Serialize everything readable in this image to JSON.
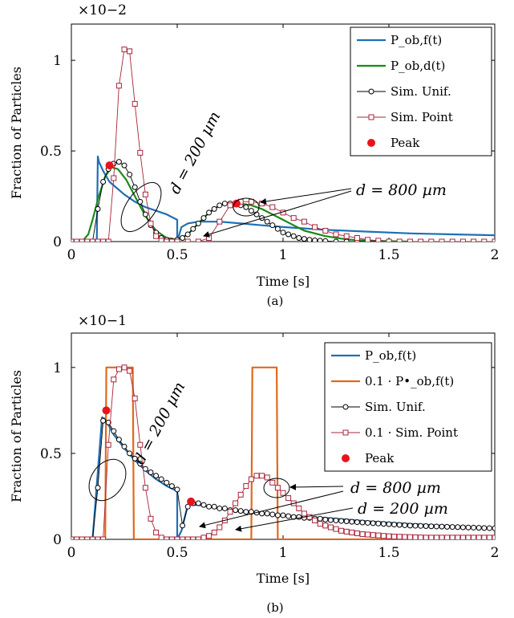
{
  "chart_data": [
    {
      "type": "line",
      "subcaption": "(a)",
      "exponent_label": "×10−2",
      "xlabel": "Time [s]",
      "ylabel": "Fraction of Particles",
      "xlim": [
        0,
        2
      ],
      "ylim": [
        0,
        1.2
      ],
      "xticks": [
        "0",
        "0.5",
        "1",
        "1.5",
        "2"
      ],
      "yticks": [
        "0",
        "0.5",
        "1"
      ],
      "legend_position": "top-right",
      "legend": [
        "P_ob,f(t)",
        "P_ob,d(t)",
        "Sim. Unif.",
        "Sim. Point",
        "Peak"
      ],
      "annotations": [
        "d = 200 µm",
        "d = 800 µm"
      ],
      "series": [
        {
          "name": "P_ob,f(t)",
          "color": "#1f6fb4",
          "style": "line",
          "x": [
            0,
            0.12,
            0.125,
            0.13,
            0.15,
            0.18,
            0.2,
            0.25,
            0.3,
            0.35,
            0.4,
            0.45,
            0.5,
            0.5,
            0.52,
            0.55,
            0.6,
            0.7,
            0.8,
            0.9,
            1.0,
            1.2,
            1.4,
            1.6,
            1.8,
            2.0
          ],
          "values": [
            0,
            0,
            0.47,
            0.44,
            0.39,
            0.33,
            0.31,
            0.26,
            0.22,
            0.19,
            0.17,
            0.15,
            0.12,
            0.0,
            0.08,
            0.1,
            0.11,
            0.11,
            0.1,
            0.09,
            0.08,
            0.065,
            0.055,
            0.045,
            0.04,
            0.035
          ]
        },
        {
          "name": "P_ob,d(t)",
          "color": "#1a8a1a",
          "style": "line",
          "x": [
            0,
            0.05,
            0.08,
            0.1,
            0.13,
            0.16,
            0.19,
            0.22,
            0.26,
            0.3,
            0.35,
            0.4,
            0.45,
            0.5,
            0.55,
            0.6,
            0.65,
            0.7,
            0.75,
            0.8,
            0.85,
            0.9,
            0.95,
            1.0,
            1.05,
            1.1,
            1.2,
            1.3,
            1.4,
            1.5,
            1.6
          ],
          "values": [
            0,
            0,
            0.04,
            0.12,
            0.25,
            0.36,
            0.41,
            0.4,
            0.34,
            0.25,
            0.14,
            0.06,
            0.02,
            0.01,
            0.04,
            0.1,
            0.16,
            0.2,
            0.21,
            0.21,
            0.2,
            0.18,
            0.15,
            0.12,
            0.09,
            0.06,
            0.03,
            0.012,
            0.005,
            0.002,
            0
          ]
        },
        {
          "name": "Sim. Unif.",
          "color": "#000000",
          "style": "line-circle",
          "x": [
            0,
            0.05,
            0.1,
            0.125,
            0.15,
            0.175,
            0.2,
            0.225,
            0.25,
            0.275,
            0.3,
            0.325,
            0.35,
            0.375,
            0.4,
            0.425,
            0.45,
            0.475,
            0.5,
            0.525,
            0.55,
            0.575,
            0.6,
            0.625,
            0.65,
            0.675,
            0.7,
            0.725,
            0.75,
            0.775,
            0.8,
            0.825,
            0.85,
            0.875,
            0.9,
            0.925,
            0.95,
            0.975,
            1.0,
            1.025,
            1.05,
            1.075,
            1.1,
            1.125,
            1.15,
            1.175,
            1.2,
            1.25,
            1.3,
            1.35,
            1.4,
            1.45,
            1.5,
            1.55,
            1.6,
            1.65,
            1.7,
            1.75,
            1.8,
            1.85,
            1.9,
            1.95,
            2.0
          ],
          "values": [
            0,
            0,
            0,
            0.18,
            0.33,
            0.4,
            0.43,
            0.44,
            0.42,
            0.37,
            0.3,
            0.22,
            0.15,
            0.09,
            0.05,
            0.02,
            0.01,
            0.005,
            0.01,
            0.02,
            0.04,
            0.07,
            0.1,
            0.13,
            0.16,
            0.18,
            0.2,
            0.21,
            0.21,
            0.21,
            0.2,
            0.19,
            0.17,
            0.15,
            0.13,
            0.11,
            0.09,
            0.07,
            0.05,
            0.04,
            0.03,
            0.02,
            0.015,
            0.01,
            0.007,
            0.005,
            0.003,
            0,
            0,
            0,
            0,
            0,
            0,
            0,
            0,
            0,
            0,
            0,
            0,
            0,
            0,
            0,
            0
          ]
        },
        {
          "name": "Sim. Point",
          "color": "#a8243a",
          "style": "line-square",
          "x": [
            0,
            0.025,
            0.05,
            0.075,
            0.1,
            0.125,
            0.15,
            0.175,
            0.2,
            0.225,
            0.25,
            0.275,
            0.3,
            0.325,
            0.35,
            0.375,
            0.4,
            0.425,
            0.45,
            0.475,
            0.5,
            0.55,
            0.6,
            0.65,
            0.7,
            0.75,
            0.8,
            0.85,
            0.9,
            0.95,
            1.0,
            1.05,
            1.1,
            1.15,
            1.2,
            1.25,
            1.3,
            1.35,
            1.4,
            1.45,
            1.5,
            1.55,
            1.6,
            1.65,
            1.7,
            1.75,
            1.8,
            1.85,
            1.9,
            1.95,
            2.0
          ],
          "values": [
            0,
            0,
            0,
            0,
            0,
            0,
            0,
            0,
            0.35,
            0.86,
            1.06,
            1.05,
            0.76,
            0.49,
            0.26,
            0.1,
            0.03,
            0.005,
            0,
            0,
            0,
            0,
            0,
            0.02,
            0.11,
            0.2,
            0.22,
            0.22,
            0.21,
            0.19,
            0.16,
            0.13,
            0.11,
            0.08,
            0.06,
            0.04,
            0.03,
            0.02,
            0.01,
            0.005,
            0,
            0,
            0,
            0,
            0,
            0,
            0,
            0,
            0,
            0,
            0
          ]
        },
        {
          "name": "Peak",
          "color": "#e8141c",
          "style": "dot",
          "x": [
            0.18,
            0.78
          ],
          "values": [
            0.42,
            0.21
          ]
        }
      ]
    },
    {
      "type": "line",
      "subcaption": "(b)",
      "exponent_label": "×10−1",
      "xlabel": "Time [s]",
      "ylabel": "Fraction of Particles",
      "xlim": [
        0,
        2
      ],
      "ylim": [
        0,
        1.2
      ],
      "xticks": [
        "0",
        "0.5",
        "1",
        "1.5",
        "2"
      ],
      "yticks": [
        "0",
        "0.5",
        "1"
      ],
      "legend_position": "top-right",
      "legend": [
        "P_ob,f(t)",
        "0.1 · P•_ob,f(t)",
        "Sim. Unif.",
        "0.1 · Sim. Point",
        "Peak"
      ],
      "annotations": [
        "d = 200 µm",
        "d = 800 µm",
        "d = 200 µm"
      ],
      "series": [
        {
          "name": "P_ob,f(t)",
          "color": "#1f6fb4",
          "style": "line",
          "x": [
            0,
            0.1,
            0.145,
            0.16,
            0.2,
            0.25,
            0.3,
            0.35,
            0.4,
            0.45,
            0.5,
            0.5,
            0.52,
            0.55,
            0.6,
            0.7,
            0.8,
            0.9,
            1.0,
            1.1,
            1.2,
            1.3,
            1.4,
            1.5,
            1.6,
            1.7,
            1.8,
            1.9,
            2.0
          ],
          "values": [
            0,
            0,
            0.71,
            0.7,
            0.61,
            0.53,
            0.46,
            0.4,
            0.35,
            0.31,
            0.28,
            0.0,
            0.05,
            0.2,
            0.2,
            0.18,
            0.16,
            0.15,
            0.14,
            0.13,
            0.125,
            0.115,
            0.105,
            0.097,
            0.09,
            0.083,
            0.077,
            0.071,
            0.065
          ]
        },
        {
          "name": "0.1 · P•_ob,f(t)",
          "color": "#e06a1b",
          "style": "line",
          "x": [
            0,
            0.16,
            0.165,
            0.29,
            0.295,
            0.85,
            0.855,
            0.97,
            0.975,
            2.0
          ],
          "values": [
            0,
            0,
            1.0,
            1.0,
            0,
            0,
            1.0,
            1.0,
            0,
            0
          ]
        },
        {
          "name": "Sim. Unif.",
          "color": "#000000",
          "style": "line-circle",
          "x": [
            0,
            0.025,
            0.05,
            0.075,
            0.1,
            0.125,
            0.15,
            0.175,
            0.2,
            0.225,
            0.25,
            0.275,
            0.3,
            0.325,
            0.35,
            0.375,
            0.4,
            0.425,
            0.45,
            0.475,
            0.5,
            0.525,
            0.55,
            0.575,
            0.6,
            0.625,
            0.65,
            0.675,
            0.7,
            0.725,
            0.75,
            0.775,
            0.8,
            0.825,
            0.85,
            0.875,
            0.9,
            0.925,
            0.95,
            0.975,
            1.0,
            1.025,
            1.05,
            1.075,
            1.1,
            1.125,
            1.15,
            1.175,
            1.2,
            1.225,
            1.25,
            1.275,
            1.3,
            1.325,
            1.35,
            1.375,
            1.4,
            1.425,
            1.45,
            1.475,
            1.5,
            1.525,
            1.55,
            1.575,
            1.6,
            1.625,
            1.65,
            1.675,
            1.7,
            1.725,
            1.75,
            1.775,
            1.8,
            1.825,
            1.85,
            1.875,
            1.9,
            1.925,
            1.95,
            1.975,
            2.0
          ],
          "values": [
            0,
            0,
            0,
            0,
            0,
            0.3,
            0.69,
            0.68,
            0.63,
            0.58,
            0.54,
            0.5,
            0.47,
            0.44,
            0.41,
            0.39,
            0.37,
            0.35,
            0.33,
            0.31,
            0.29,
            0.08,
            0.19,
            0.21,
            0.21,
            0.2,
            0.19,
            0.19,
            0.18,
            0.18,
            0.17,
            0.17,
            0.165,
            0.16,
            0.16,
            0.155,
            0.15,
            0.15,
            0.145,
            0.14,
            0.14,
            0.135,
            0.13,
            0.13,
            0.125,
            0.125,
            0.12,
            0.12,
            0.115,
            0.112,
            0.11,
            0.107,
            0.105,
            0.102,
            0.1,
            0.098,
            0.096,
            0.094,
            0.092,
            0.09,
            0.088,
            0.086,
            0.084,
            0.082,
            0.08,
            0.079,
            0.078,
            0.077,
            0.076,
            0.075,
            0.074,
            0.073,
            0.072,
            0.071,
            0.07,
            0.069,
            0.068,
            0.067,
            0.066,
            0.065,
            0.064
          ]
        },
        {
          "name": "0.1 · Sim. Point",
          "color": "#a8243a",
          "style": "line-square",
          "x": [
            0,
            0.025,
            0.05,
            0.075,
            0.1,
            0.125,
            0.15,
            0.175,
            0.2,
            0.225,
            0.25,
            0.275,
            0.3,
            0.325,
            0.35,
            0.375,
            0.4,
            0.425,
            0.45,
            0.475,
            0.5,
            0.525,
            0.55,
            0.575,
            0.6,
            0.625,
            0.65,
            0.675,
            0.7,
            0.725,
            0.75,
            0.775,
            0.8,
            0.825,
            0.85,
            0.875,
            0.9,
            0.925,
            0.95,
            0.975,
            1.0,
            1.025,
            1.05,
            1.075,
            1.1,
            1.125,
            1.15,
            1.175,
            1.2,
            1.225,
            1.25,
            1.275,
            1.3,
            1.325,
            1.35,
            1.375,
            1.4,
            1.425,
            1.45,
            1.475,
            1.5,
            1.525,
            1.55,
            1.575,
            1.6,
            1.625,
            1.65,
            1.675,
            1.7,
            1.725,
            1.75,
            1.775,
            1.8,
            1.825,
            1.85,
            1.875,
            1.9,
            1.925,
            1.95,
            1.975,
            2.0
          ],
          "values": [
            0,
            0,
            0,
            0,
            0,
            0,
            0,
            0.55,
            0.93,
            0.99,
            1.0,
            0.98,
            0.82,
            0.55,
            0.3,
            0.12,
            0.04,
            0.01,
            0,
            0,
            0,
            0,
            0,
            0,
            0,
            0.01,
            0.02,
            0.04,
            0.07,
            0.11,
            0.16,
            0.21,
            0.26,
            0.31,
            0.35,
            0.37,
            0.37,
            0.36,
            0.33,
            0.3,
            0.27,
            0.24,
            0.21,
            0.18,
            0.15,
            0.13,
            0.11,
            0.09,
            0.08,
            0.07,
            0.06,
            0.05,
            0.045,
            0.04,
            0.035,
            0.03,
            0.028,
            0.025,
            0.023,
            0.02,
            0.018,
            0.016,
            0.015,
            0.014,
            0.013,
            0.012,
            0.011,
            0.01,
            0.01,
            0.01,
            0.01,
            0.01,
            0.01,
            0.01,
            0.01,
            0.01,
            0.01,
            0.01,
            0.01,
            0.01,
            0.01
          ]
        },
        {
          "name": "Peak",
          "color": "#e8141c",
          "style": "dot",
          "x": [
            0.165,
            0.565
          ],
          "values": [
            0.75,
            0.22
          ]
        }
      ]
    }
  ]
}
